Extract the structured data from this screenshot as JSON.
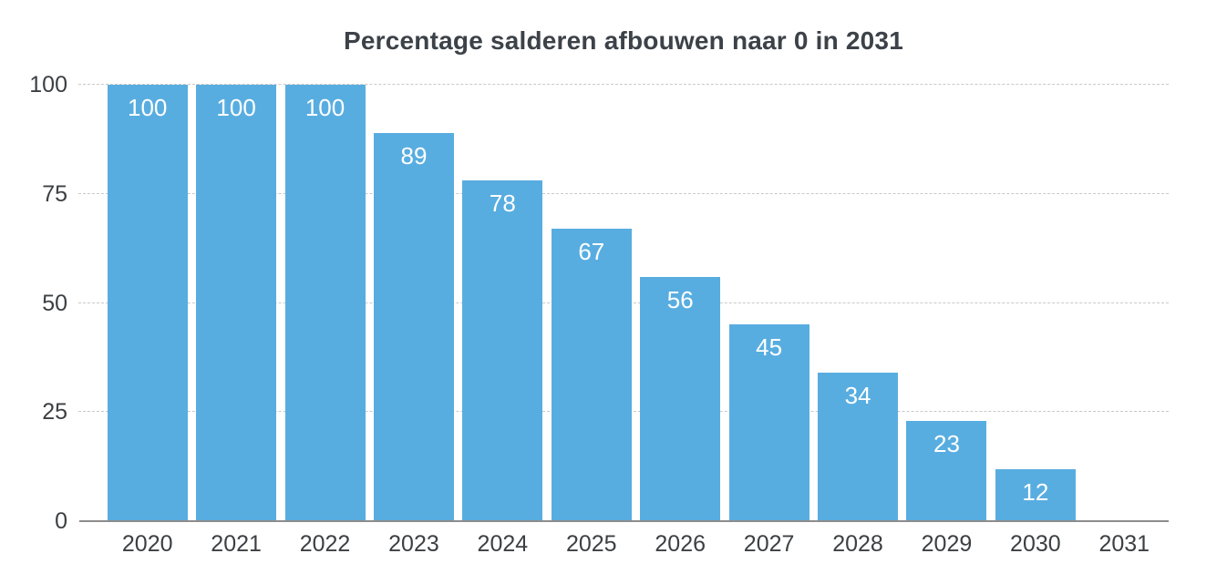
{
  "chart_data": {
    "type": "bar",
    "title": "Percentage salderen afbouwen naar 0 in 2031",
    "categories": [
      "2020",
      "2021",
      "2022",
      "2023",
      "2024",
      "2025",
      "2026",
      "2027",
      "2028",
      "2029",
      "2030",
      "2031"
    ],
    "values": [
      100,
      100,
      100,
      89,
      78,
      67,
      56,
      45,
      34,
      23,
      12,
      0
    ],
    "xlabel": "",
    "ylabel": "",
    "ylim": [
      0,
      100
    ],
    "yticks": [
      0,
      25,
      50,
      75,
      100
    ],
    "grid": "horizontal-dashed",
    "legend": "none",
    "colors": {
      "bar": "#58ADE0",
      "bar_value_label": "#FFFFFF",
      "title_text": "#3C4248",
      "tick_text": "#3C4043",
      "gridline": "#C9C9C9",
      "axis_line": "#8C8C8C",
      "background": "#FFFFFF"
    }
  }
}
